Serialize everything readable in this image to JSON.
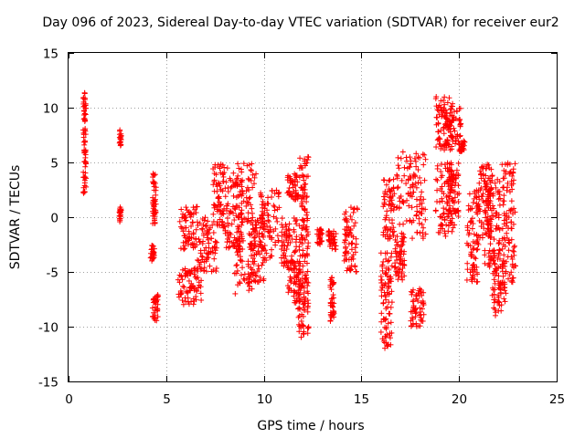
{
  "chart_data": {
    "type": "scatter",
    "title": "Day 096 of 2023, Sidereal Day-to-day VTEC variation (SDTVAR) for receiver eur2",
    "xlabel": "GPS time / hours",
    "ylabel": "SDTVAR / TECUs",
    "xlim": [
      0,
      25
    ],
    "ylim": [
      -15,
      15
    ],
    "xticks": [
      "0",
      "5",
      "10",
      "15",
      "20",
      "25"
    ],
    "yticks": [
      "15",
      "10",
      "5",
      "0",
      "-5",
      "-10",
      "-15"
    ],
    "grid": true,
    "marker": "+",
    "color": "#ff0000",
    "clusters": [
      {
        "x": [
          0.75,
          0.9
        ],
        "y": [
          2,
          11.5
        ]
      },
      {
        "x": [
          2.6,
          2.7
        ],
        "y": [
          6.5,
          8
        ]
      },
      {
        "x": [
          2.6,
          2.7
        ],
        "y": [
          -0.5,
          1
        ]
      },
      {
        "x": [
          4.3,
          4.5
        ],
        "y": [
          -1,
          4
        ]
      },
      {
        "x": [
          4.2,
          4.4
        ],
        "y": [
          -4,
          -2.5
        ]
      },
      {
        "x": [
          4.3,
          4.6
        ],
        "y": [
          -9.5,
          -7
        ]
      },
      {
        "x": [
          5.6,
          6.8
        ],
        "y": [
          -8,
          -4.5
        ]
      },
      {
        "x": [
          5.7,
          6.6
        ],
        "y": [
          -3,
          1
        ]
      },
      {
        "x": [
          6.6,
          7.6
        ],
        "y": [
          -5,
          0
        ]
      },
      {
        "x": [
          7.4,
          8.0
        ],
        "y": [
          -1,
          5
        ]
      },
      {
        "x": [
          8.0,
          8.9
        ],
        "y": [
          -3,
          4.5
        ]
      },
      {
        "x": [
          8.5,
          9.6
        ],
        "y": [
          -7,
          5
        ]
      },
      {
        "x": [
          9.2,
          10.0
        ],
        "y": [
          -6,
          0
        ]
      },
      {
        "x": [
          9.8,
          10.8
        ],
        "y": [
          -4,
          2.5
        ]
      },
      {
        "x": [
          10.9,
          11.7
        ],
        "y": [
          -4.5,
          0
        ]
      },
      {
        "x": [
          11.2,
          11.9
        ],
        "y": [
          -8,
          -4
        ]
      },
      {
        "x": [
          11.2,
          11.8
        ],
        "y": [
          1.5,
          4
        ]
      },
      {
        "x": [
          11.7,
          12.3
        ],
        "y": [
          -11,
          -5
        ]
      },
      {
        "x": [
          11.8,
          12.3
        ],
        "y": [
          -6,
          6
        ]
      },
      {
        "x": [
          12.7,
          13.0
        ],
        "y": [
          -2.5,
          -1
        ]
      },
      {
        "x": [
          13.3,
          13.7
        ],
        "y": [
          -3,
          -1
        ]
      },
      {
        "x": [
          13.4,
          13.6
        ],
        "y": [
          -9.5,
          -5.5
        ]
      },
      {
        "x": [
          14.1,
          14.8
        ],
        "y": [
          -5,
          1
        ]
      },
      {
        "x": [
          16.0,
          16.6
        ],
        "y": [
          -12,
          -3
        ]
      },
      {
        "x": [
          16.1,
          16.7
        ],
        "y": [
          -2,
          3.5
        ]
      },
      {
        "x": [
          16.7,
          17.2
        ],
        "y": [
          -6,
          -2
        ]
      },
      {
        "x": [
          16.8,
          18.3
        ],
        "y": [
          -2,
          6
        ]
      },
      {
        "x": [
          17.5,
          18.2
        ],
        "y": [
          -10,
          -6.5
        ]
      },
      {
        "x": [
          18.8,
          19.7
        ],
        "y": [
          6,
          11
        ]
      },
      {
        "x": [
          18.8,
          19.7
        ],
        "y": [
          -2,
          5
        ]
      },
      {
        "x": [
          19.2,
          20.1
        ],
        "y": [
          6.5,
          10
        ]
      },
      {
        "x": [
          19.5,
          20.0
        ],
        "y": [
          -1,
          5
        ]
      },
      {
        "x": [
          20.0,
          20.3
        ],
        "y": [
          6,
          7
        ]
      },
      {
        "x": [
          20.4,
          21.0
        ],
        "y": [
          -6,
          2.5
        ]
      },
      {
        "x": [
          21.0,
          21.7
        ],
        "y": [
          -2,
          5
        ]
      },
      {
        "x": [
          21.3,
          22.1
        ],
        "y": [
          -5,
          4
        ]
      },
      {
        "x": [
          21.7,
          22.4
        ],
        "y": [
          -9,
          -3
        ]
      },
      {
        "x": [
          22.2,
          22.9
        ],
        "y": [
          -6,
          5
        ]
      }
    ]
  }
}
